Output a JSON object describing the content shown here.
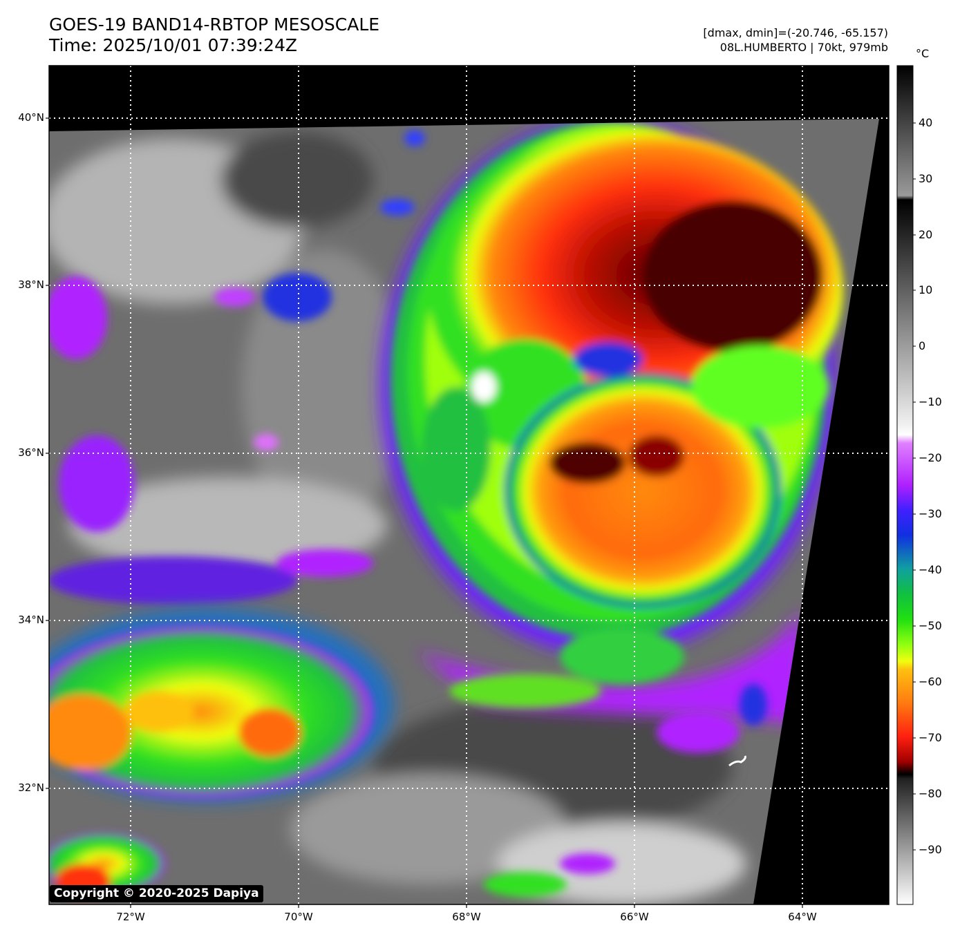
{
  "title": {
    "line1": "GOES-19 BAND14-RBTOP MESOSCALE",
    "line2": "Time: 2025/10/01 07:39:24Z"
  },
  "meta": {
    "range": "[dmax, dmin]=(-20.746, -65.157)",
    "storm": "08L.HUMBERTO | 70kt, 979mb"
  },
  "map": {
    "latitude_labels": [
      "40°N",
      "38°N",
      "36°N",
      "34°N",
      "32°N"
    ],
    "longitude_labels": [
      "72°W",
      "70°W",
      "68°W",
      "66°W",
      "64°W"
    ],
    "gridlines": "dotted white"
  },
  "colorbar": {
    "unit": "°C",
    "ticks": [
      "40",
      "30",
      "20",
      "10",
      "0",
      "−10",
      "−20",
      "−30",
      "−40",
      "−50",
      "−60",
      "−70",
      "−80",
      "−90"
    ],
    "colors": {
      "warm_gray": "#5a5a5a",
      "violet": "#b020ff",
      "blue": "#2030e0",
      "green": "#20e020",
      "yellow": "#f0ff10",
      "orange": "#ff8a10",
      "red": "#ff2a10",
      "dark_red": "#400000"
    }
  },
  "copyright": "Copyright © 2020-2025 Dapiya"
}
